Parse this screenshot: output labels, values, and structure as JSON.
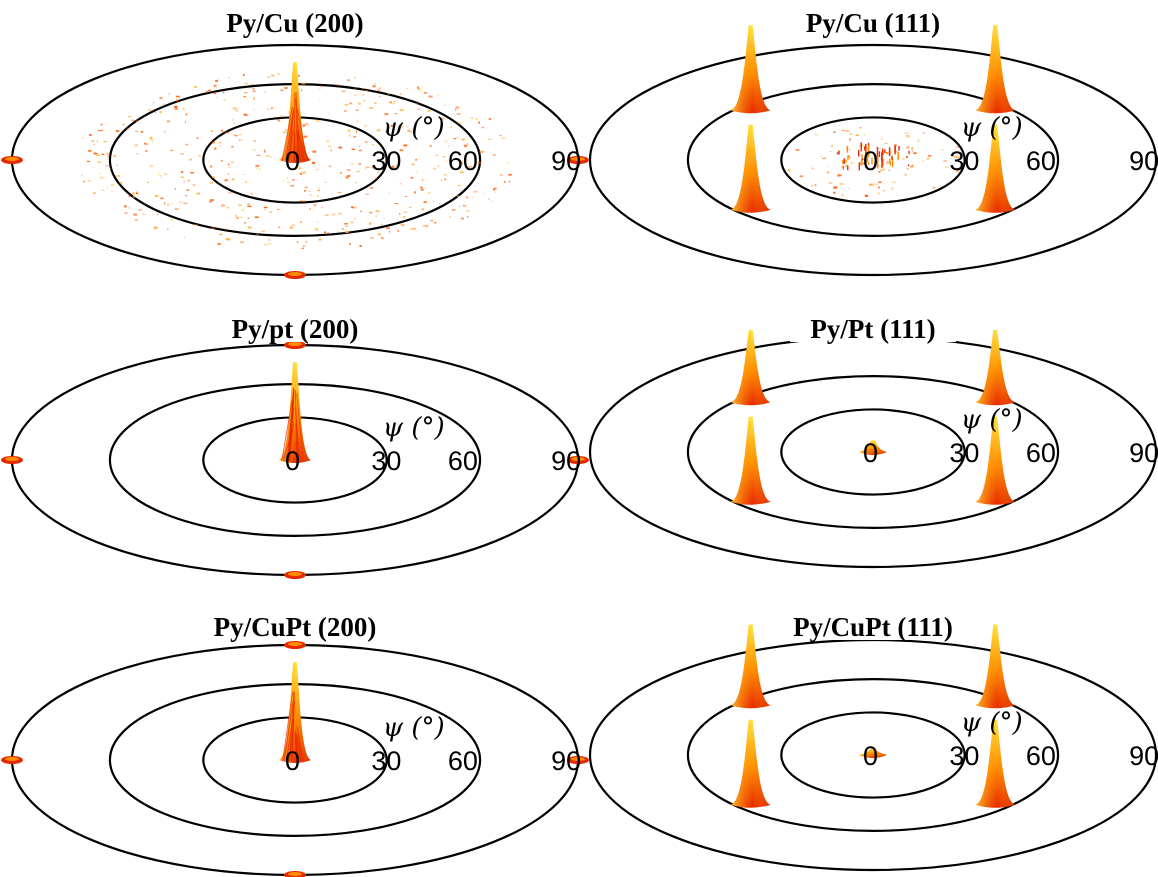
{
  "colors": {
    "peak_base": "#e62800",
    "peak_mid": "#ff8c00",
    "peak_top": "#ffe640",
    "speckle": "#ff5a00",
    "ring": "#000000"
  },
  "chart_data": [
    {
      "type": "polar-3d-surface",
      "title": "Py/Cu (200)",
      "axis_label": "ψ (°)",
      "psi_ticks": [
        "0",
        "30",
        "60",
        "90"
      ],
      "rings_deg": [
        30,
        60,
        90
      ],
      "peaks": [
        {
          "psi": 0,
          "phi": 0,
          "height": 1.0,
          "kind": "sharp"
        },
        {
          "psi": 90,
          "phi": 0,
          "height": 0.05,
          "kind": "edge"
        },
        {
          "psi": 90,
          "phi": 90,
          "height": 0.05,
          "kind": "edge"
        },
        {
          "psi": 90,
          "phi": 180,
          "height": 0.05,
          "kind": "edge"
        }
      ],
      "background_speckle": "high"
    },
    {
      "type": "polar-3d-surface",
      "title": "Py/Cu (111)",
      "axis_label": "ψ (°)",
      "psi_ticks": [
        "0",
        "30",
        "60",
        "90"
      ],
      "rings_deg": [
        30,
        60,
        90
      ],
      "peaks": [
        {
          "psi": 0,
          "phi": 0,
          "height": 0.2,
          "kind": "diffuse"
        },
        {
          "psi": 55,
          "phi": 45,
          "height": 1.0,
          "kind": "broad"
        },
        {
          "psi": 55,
          "phi": 135,
          "height": 1.0,
          "kind": "broad"
        },
        {
          "psi": 55,
          "phi": 225,
          "height": 1.0,
          "kind": "broad"
        },
        {
          "psi": 55,
          "phi": 315,
          "height": 1.0,
          "kind": "broad"
        }
      ],
      "background_speckle": "low"
    },
    {
      "type": "polar-3d-surface",
      "title": "Py/pt (200)",
      "axis_label": "ψ (°)",
      "psi_ticks": [
        "0",
        "30",
        "60",
        "90"
      ],
      "rings_deg": [
        30,
        60,
        90
      ],
      "peaks": [
        {
          "psi": 0,
          "phi": 0,
          "height": 1.0,
          "kind": "sharp"
        },
        {
          "psi": 90,
          "phi": 0,
          "height": 0.05,
          "kind": "edge"
        },
        {
          "psi": 90,
          "phi": 90,
          "height": 0.05,
          "kind": "edge"
        },
        {
          "psi": 90,
          "phi": 180,
          "height": 0.05,
          "kind": "edge"
        },
        {
          "psi": 90,
          "phi": 270,
          "height": 0.05,
          "kind": "edge"
        }
      ],
      "background_speckle": "none"
    },
    {
      "type": "polar-3d-surface",
      "title": "Py/Pt (111)",
      "axis_label": "ψ (°)",
      "psi_ticks": [
        "0",
        "30",
        "60",
        "90"
      ],
      "rings_deg": [
        30,
        60,
        90
      ],
      "peaks": [
        {
          "psi": 0,
          "phi": 0,
          "height": 0.25,
          "kind": "small"
        },
        {
          "psi": 55,
          "phi": 45,
          "height": 1.0,
          "kind": "broad"
        },
        {
          "psi": 55,
          "phi": 135,
          "height": 1.0,
          "kind": "broad"
        },
        {
          "psi": 55,
          "phi": 225,
          "height": 0.85,
          "kind": "broad"
        },
        {
          "psi": 55,
          "phi": 315,
          "height": 0.85,
          "kind": "broad"
        }
      ],
      "background_speckle": "none"
    },
    {
      "type": "polar-3d-surface",
      "title": "Py/CuPt (200)",
      "axis_label": "ψ (°)",
      "psi_ticks": [
        "0",
        "30",
        "60",
        "90"
      ],
      "rings_deg": [
        30,
        60,
        90
      ],
      "peaks": [
        {
          "psi": 0,
          "phi": 0,
          "height": 1.0,
          "kind": "sharp"
        },
        {
          "psi": 90,
          "phi": 0,
          "height": 0.05,
          "kind": "edge"
        },
        {
          "psi": 90,
          "phi": 90,
          "height": 0.05,
          "kind": "edge"
        },
        {
          "psi": 90,
          "phi": 180,
          "height": 0.05,
          "kind": "edge"
        },
        {
          "psi": 90,
          "phi": 270,
          "height": 0.05,
          "kind": "edge"
        }
      ],
      "background_speckle": "none"
    },
    {
      "type": "polar-3d-surface",
      "title": "Py/CuPt (111)",
      "axis_label": "ψ (°)",
      "psi_ticks": [
        "0",
        "30",
        "60",
        "90"
      ],
      "rings_deg": [
        30,
        60,
        90
      ],
      "peaks": [
        {
          "psi": 0,
          "phi": 0,
          "height": 0.15,
          "kind": "small"
        },
        {
          "psi": 55,
          "phi": 45,
          "height": 1.0,
          "kind": "broad"
        },
        {
          "psi": 55,
          "phi": 135,
          "height": 1.0,
          "kind": "broad"
        },
        {
          "psi": 55,
          "phi": 225,
          "height": 0.95,
          "kind": "broad"
        },
        {
          "psi": 55,
          "phi": 315,
          "height": 0.95,
          "kind": "broad"
        }
      ],
      "background_speckle": "none"
    }
  ]
}
